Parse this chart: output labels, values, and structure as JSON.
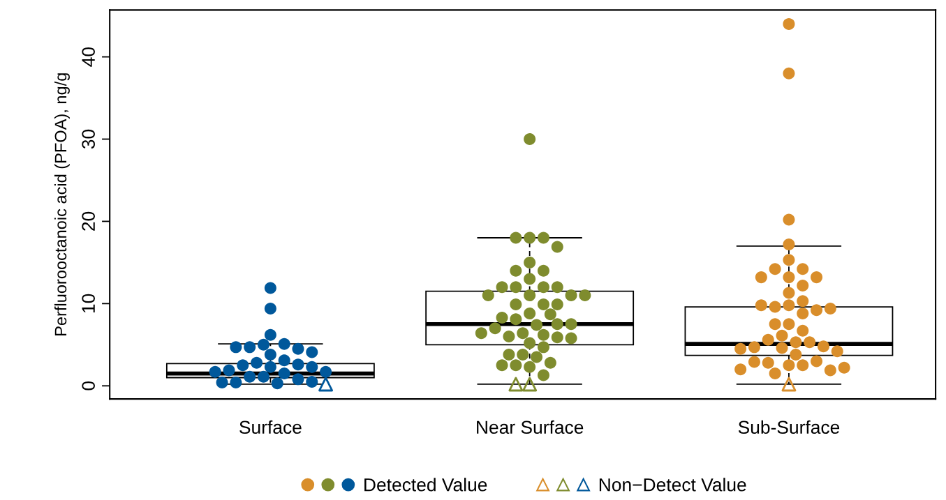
{
  "chart_data": {
    "type": "box",
    "ylabel": "Perfluorooctanoic acid (PFOA), ng/g",
    "categories": [
      "Surface",
      "Near Surface",
      "Sub-Surface"
    ],
    "boxes": [
      {
        "low": 0.2,
        "q1": 1.0,
        "median": 1.5,
        "q3": 2.7,
        "high": 5.1
      },
      {
        "low": 0.2,
        "q1": 5.0,
        "median": 7.5,
        "q3": 11.5,
        "high": 18
      },
      {
        "low": 0.2,
        "q1": 3.7,
        "median": 5.1,
        "q3": 9.6,
        "high": 17
      }
    ],
    "series": [
      {
        "name": "Detected Value",
        "type": "scatter",
        "marker": "circle",
        "x": [
          "Surface",
          "Surface",
          "Surface",
          "Surface",
          "Surface",
          "Surface",
          "Surface",
          "Surface",
          "Surface",
          "Surface",
          "Surface",
          "Surface",
          "Surface",
          "Surface",
          "Surface",
          "Surface",
          "Surface",
          "Surface",
          "Surface",
          "Surface",
          "Surface",
          "Surface",
          "Surface",
          "Surface",
          "Surface",
          "Surface",
          "Surface",
          "Near Surface",
          "Near Surface",
          "Near Surface",
          "Near Surface",
          "Near Surface",
          "Near Surface",
          "Near Surface",
          "Near Surface",
          "Near Surface",
          "Near Surface",
          "Near Surface",
          "Near Surface",
          "Near Surface",
          "Near Surface",
          "Near Surface",
          "Near Surface",
          "Near Surface",
          "Near Surface",
          "Near Surface",
          "Near Surface",
          "Near Surface",
          "Near Surface",
          "Near Surface",
          "Near Surface",
          "Near Surface",
          "Near Surface",
          "Near Surface",
          "Near Surface",
          "Near Surface",
          "Near Surface",
          "Near Surface",
          "Near Surface",
          "Near Surface",
          "Near Surface",
          "Near Surface",
          "Near Surface",
          "Near Surface",
          "Near Surface",
          "Near Surface",
          "Near Surface",
          "Near Surface",
          "Near Surface",
          "Near Surface",
          "Near Surface",
          "Sub-Surface",
          "Sub-Surface",
          "Sub-Surface",
          "Sub-Surface",
          "Sub-Surface",
          "Sub-Surface",
          "Sub-Surface",
          "Sub-Surface",
          "Sub-Surface",
          "Sub-Surface",
          "Sub-Surface",
          "Sub-Surface",
          "Sub-Surface",
          "Sub-Surface",
          "Sub-Surface",
          "Sub-Surface",
          "Sub-Surface",
          "Sub-Surface",
          "Sub-Surface",
          "Sub-Surface",
          "Sub-Surface",
          "Sub-Surface",
          "Sub-Surface",
          "Sub-Surface",
          "Sub-Surface",
          "Sub-Surface",
          "Sub-Surface",
          "Sub-Surface",
          "Sub-Surface",
          "Sub-Surface",
          "Sub-Surface",
          "Sub-Surface",
          "Sub-Surface",
          "Sub-Surface",
          "Sub-Surface",
          "Sub-Surface",
          "Sub-Surface",
          "Sub-Surface",
          "Sub-Surface",
          "Sub-Surface",
          "Sub-Surface"
        ],
        "values": [
          11.9,
          9.4,
          6.2,
          5.1,
          5.0,
          4.7,
          4.5,
          4.7,
          4.1,
          3.8,
          3.1,
          2.8,
          2.6,
          2.5,
          2.3,
          2.3,
          1.9,
          1.7,
          1.5,
          1.7,
          1.1,
          1.1,
          0.8,
          0.3,
          0.4,
          0.5,
          0.4,
          30,
          18,
          18,
          18,
          16.9,
          15,
          14,
          14,
          13,
          12,
          12,
          12,
          12,
          11,
          11,
          11,
          11,
          9.9,
          9.9,
          9.9,
          8.8,
          8.7,
          8.1,
          8.3,
          7.4,
          7.5,
          7.5,
          7.0,
          6.4,
          6.2,
          6.0,
          6.4,
          5.9,
          5.8,
          5.2,
          4.7,
          3.8,
          3.8,
          3.5,
          2.8,
          2.5,
          2.5,
          2.3,
          1.3,
          44,
          38,
          20.2,
          17.2,
          15.3,
          14.2,
          14.2,
          13.2,
          13.2,
          13.2,
          12.2,
          11.3,
          10.3,
          9.8,
          9.6,
          9.2,
          9.8,
          9.4,
          8.8,
          7.5,
          7.5,
          6.7,
          6.1,
          5.6,
          5.3,
          5.3,
          4.8,
          4.7,
          4.6,
          4.2,
          4.5,
          3.8,
          2.5,
          2.5,
          1.5,
          2.8,
          3.0,
          2.9,
          1.9,
          2.0,
          2.2
        ],
        "colors": [
          "#00589b",
          "#00589b",
          "#00589b",
          "#00589b",
          "#00589b",
          "#00589b",
          "#00589b",
          "#00589b",
          "#00589b",
          "#00589b",
          "#00589b",
          "#00589b",
          "#00589b",
          "#00589b",
          "#00589b",
          "#00589b",
          "#00589b",
          "#00589b",
          "#00589b",
          "#00589b",
          "#00589b",
          "#00589b",
          "#00589b",
          "#00589b",
          "#00589b",
          "#00589b",
          "#00589b",
          "#7f8c2e",
          "#7f8c2e",
          "#7f8c2e",
          "#7f8c2e",
          "#7f8c2e",
          "#7f8c2e",
          "#7f8c2e",
          "#7f8c2e",
          "#7f8c2e",
          "#7f8c2e",
          "#7f8c2e",
          "#7f8c2e",
          "#7f8c2e",
          "#7f8c2e",
          "#7f8c2e",
          "#7f8c2e",
          "#7f8c2e",
          "#7f8c2e",
          "#7f8c2e",
          "#7f8c2e",
          "#7f8c2e",
          "#7f8c2e",
          "#7f8c2e",
          "#7f8c2e",
          "#7f8c2e",
          "#7f8c2e",
          "#7f8c2e",
          "#7f8c2e",
          "#7f8c2e",
          "#7f8c2e",
          "#7f8c2e",
          "#7f8c2e",
          "#7f8c2e",
          "#7f8c2e",
          "#7f8c2e",
          "#7f8c2e",
          "#7f8c2e",
          "#7f8c2e",
          "#7f8c2e",
          "#7f8c2e",
          "#7f8c2e",
          "#7f8c2e",
          "#7f8c2e",
          "#7f8c2e",
          "#d98e2b",
          "#d98e2b",
          "#d98e2b",
          "#d98e2b",
          "#d98e2b",
          "#d98e2b",
          "#d98e2b",
          "#d98e2b",
          "#d98e2b",
          "#d98e2b",
          "#d98e2b",
          "#d98e2b",
          "#d98e2b",
          "#d98e2b",
          "#d98e2b",
          "#d98e2b",
          "#d98e2b",
          "#d98e2b",
          "#d98e2b",
          "#d98e2b",
          "#d98e2b",
          "#d98e2b",
          "#d98e2b",
          "#d98e2b",
          "#d98e2b",
          "#d98e2b",
          "#d98e2b",
          "#d98e2b",
          "#d98e2b",
          "#d98e2b",
          "#d98e2b",
          "#d98e2b",
          "#d98e2b",
          "#d98e2b",
          "#d98e2b",
          "#d98e2b",
          "#d98e2b",
          "#d98e2b",
          "#d98e2b",
          "#d98e2b",
          "#d98e2b"
        ]
      },
      {
        "name": "Non−Detect Value",
        "type": "scatter",
        "marker": "triangle",
        "x": [
          "Surface",
          "Near Surface",
          "Near Surface",
          "Sub-Surface"
        ],
        "values": [
          0.2,
          0.2,
          0.2,
          0.2
        ],
        "colors": [
          "#00589b",
          "#7f8c2e",
          "#7f8c2e",
          "#d98e2b"
        ]
      }
    ],
    "ylim": [
      -1.6,
      45.7
    ],
    "yticks": [
      0,
      10,
      20,
      30,
      40
    ],
    "legend": "bottom",
    "grid": false
  }
}
